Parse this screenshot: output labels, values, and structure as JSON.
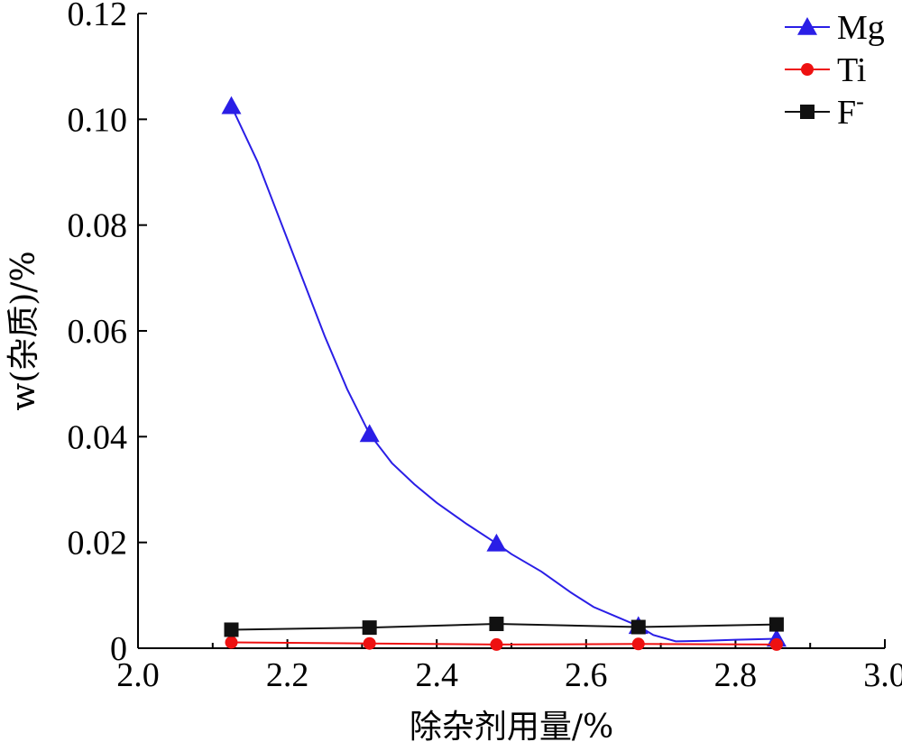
{
  "chart_data": {
    "type": "line",
    "xlabel": "除杂剂用量/%",
    "ylabel": "w(杂质)/%",
    "xlim": [
      2.0,
      3.0
    ],
    "ylim": [
      0,
      0.12
    ],
    "xticks": [
      "2.0",
      "2.2",
      "2.4",
      "2.6",
      "2.8",
      "3.0"
    ],
    "yticks": [
      "0",
      "0.02",
      "0.04",
      "0.06",
      "0.08",
      "0.10",
      "0.12"
    ],
    "legend_position": "top-right",
    "grid": false,
    "series": [
      {
        "name": "Mg",
        "legend_label": "Mg",
        "color": "#2a1ee6",
        "marker": "triangle",
        "x": [
          2.125,
          2.31,
          2.48,
          2.67,
          2.855
        ],
        "values": [
          0.1025,
          0.0405,
          0.0198,
          0.0042,
          0.0018
        ],
        "curve_x": [
          2.125,
          2.16,
          2.19,
          2.22,
          2.25,
          2.28,
          2.31,
          2.34,
          2.37,
          2.4,
          2.44,
          2.48,
          2.5,
          2.54,
          2.58,
          2.61,
          2.64,
          2.67,
          2.69,
          2.72,
          2.76,
          2.8,
          2.855
        ],
        "curve_y": [
          0.1025,
          0.092,
          0.081,
          0.07,
          0.059,
          0.049,
          0.0405,
          0.035,
          0.031,
          0.0275,
          0.0235,
          0.0198,
          0.0178,
          0.0145,
          0.0105,
          0.0078,
          0.006,
          0.0042,
          0.0025,
          0.0013,
          0.0014,
          0.0016,
          0.0018
        ]
      },
      {
        "name": "Ti",
        "legend_label": "Ti",
        "color": "#ee1111",
        "marker": "circle",
        "x": [
          2.125,
          2.31,
          2.48,
          2.67,
          2.855
        ],
        "values": [
          0.0011,
          0.0009,
          0.0007,
          0.0008,
          0.0007
        ]
      },
      {
        "name": "F-",
        "legend_label": "F",
        "legend_superscript": "-",
        "color": "#111111",
        "marker": "square",
        "x": [
          2.125,
          2.31,
          2.48,
          2.67,
          2.855
        ],
        "values": [
          0.0035,
          0.0039,
          0.0046,
          0.004,
          0.0045
        ]
      }
    ]
  }
}
